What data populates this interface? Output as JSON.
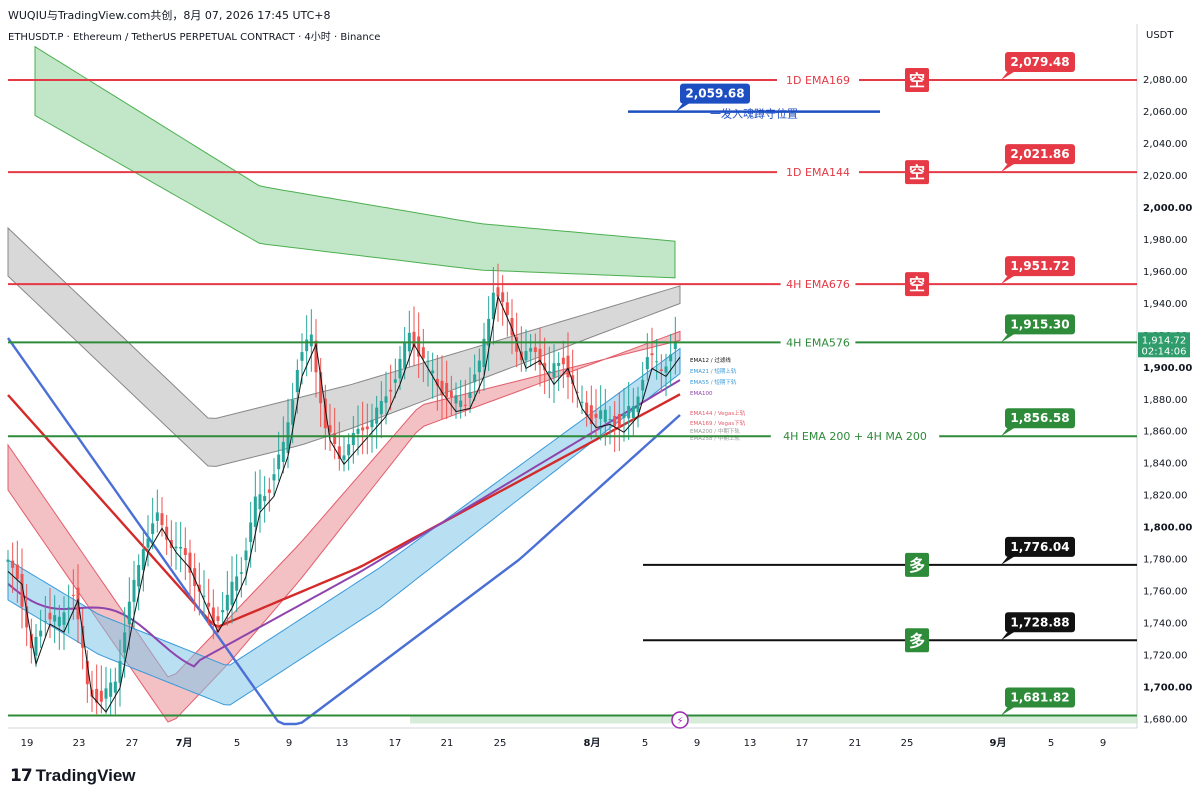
{
  "header": {
    "publisher": "WUQIU与TradingView.com共创，8月 07, 2026 17:45 UTC+8",
    "symbol_line": "ETHUSDT.P · Ethereum / TetherUS PERPETUAL CONTRACT · 4小时 · Binance",
    "currency": "USDT"
  },
  "footer": {
    "brand": "TradingView"
  },
  "colors": {
    "red_level": "#e53945",
    "green_level": "#2e8b3a",
    "black_level": "#111111",
    "blue_level": "#1e4fc2",
    "ema_band_green": "#8fd49a",
    "ema_band_gray": "#a9a9a9",
    "vegas_red": "#e8828a",
    "price_current": "#2e9c6b"
  },
  "chart_data": {
    "type": "candlestick",
    "title": "",
    "y_axis_ticks": [
      2080,
      2060,
      2040,
      2020,
      2000,
      1980,
      1960,
      1940,
      1920,
      1900,
      1880,
      1860,
      1840,
      1820,
      1800,
      1780,
      1760,
      1740,
      1720,
      1700,
      1680
    ],
    "y_range": [
      1674,
      2102
    ],
    "x_axis_ticks": [
      "19",
      "23",
      "27",
      "7月",
      "5",
      "9",
      "13",
      "17",
      "21",
      "25",
      "8月",
      "5",
      "9",
      "13",
      "17",
      "21",
      "25",
      "9月",
      "5",
      "9"
    ],
    "horizontal_levels": [
      {
        "label": "1D  EMA169",
        "value": 2079.48,
        "color": "red",
        "tag": "空"
      },
      {
        "label": "一发入魂蹲守位置",
        "value": 2059.68,
        "color": "blue",
        "tag": ""
      },
      {
        "label": "1D  EMA144",
        "value": 2021.86,
        "color": "red",
        "tag": "空"
      },
      {
        "label": "4H EMA676",
        "value": 1951.72,
        "color": "red",
        "tag": "空"
      },
      {
        "label": "4H EMA576",
        "value": 1915.3,
        "color": "green",
        "tag": ""
      },
      {
        "label": "4H EMA 200 + 4H MA 200",
        "value": 1856.58,
        "color": "green",
        "tag": ""
      },
      {
        "label": "",
        "value": 1776.04,
        "color": "black",
        "tag": "多"
      },
      {
        "label": "",
        "value": 1728.88,
        "color": "black",
        "tag": "多"
      },
      {
        "label": "",
        "value": 1681.82,
        "color": "green",
        "tag": ""
      }
    ],
    "level_prices": [
      "2,079.48",
      "2,059.68",
      "2,021.86",
      "1,951.72",
      "1,915.30",
      "1,856.58",
      "1,776.04",
      "1,728.88",
      "1,681.82"
    ],
    "current_price": {
      "value": 1914.72,
      "label": "1,914.72",
      "countdown": "02:14:06"
    },
    "indicator_legend": [
      "EMA12 / 过滤线",
      "EMA21 / 短期上轨",
      "EMA55 / 短期下轨",
      "EMA100",
      "EMA144 / Vegas上轨",
      "EMA169 / Vegas下轨",
      "EMA200 / 中期下轨",
      "EMA258 / 中期上轨"
    ],
    "price_path": [
      [
        0,
        1778
      ],
      [
        3,
        1770
      ],
      [
        6,
        1720
      ],
      [
        9,
        1745
      ],
      [
        12,
        1740
      ],
      [
        15,
        1760
      ],
      [
        18,
        1700
      ],
      [
        21,
        1690
      ],
      [
        24,
        1705
      ],
      [
        27,
        1750
      ],
      [
        30,
        1790
      ],
      [
        33,
        1805
      ],
      [
        36,
        1790
      ],
      [
        39,
        1780
      ],
      [
        42,
        1760
      ],
      [
        45,
        1740
      ],
      [
        48,
        1755
      ],
      [
        51,
        1775
      ],
      [
        54,
        1815
      ],
      [
        57,
        1825
      ],
      [
        60,
        1850
      ],
      [
        63,
        1900
      ],
      [
        66,
        1920
      ],
      [
        69,
        1860
      ],
      [
        72,
        1845
      ],
      [
        75,
        1855
      ],
      [
        78,
        1865
      ],
      [
        81,
        1875
      ],
      [
        84,
        1895
      ],
      [
        87,
        1920
      ],
      [
        90,
        1905
      ],
      [
        93,
        1890
      ],
      [
        96,
        1878
      ],
      [
        99,
        1880
      ],
      [
        102,
        1900
      ],
      [
        105,
        1950
      ],
      [
        108,
        1930
      ],
      [
        111,
        1905
      ],
      [
        114,
        1910
      ],
      [
        117,
        1895
      ],
      [
        120,
        1905
      ],
      [
        123,
        1880
      ],
      [
        126,
        1868
      ],
      [
        129,
        1870
      ],
      [
        132,
        1865
      ],
      [
        135,
        1875
      ],
      [
        138,
        1905
      ],
      [
        141,
        1900
      ],
      [
        144,
        1912
      ]
    ],
    "x_axis_days": 208
  }
}
